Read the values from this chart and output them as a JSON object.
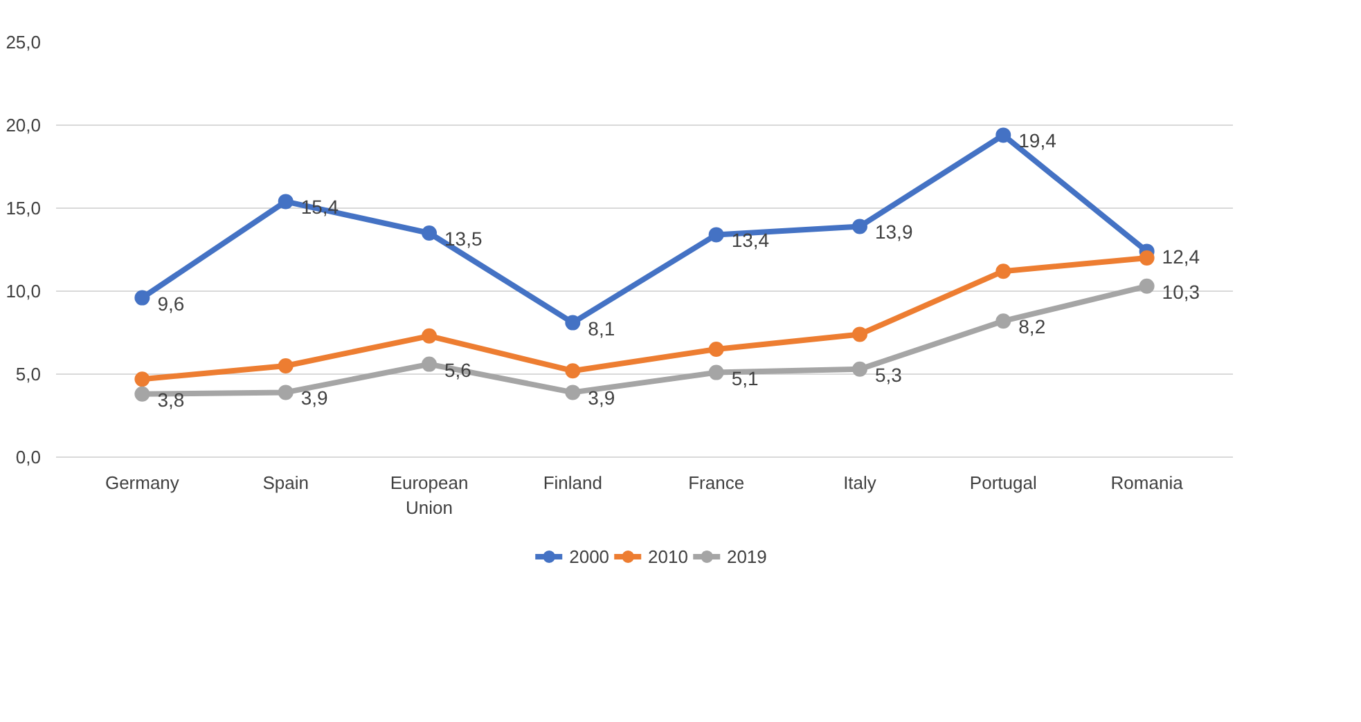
{
  "chart_data": {
    "type": "line",
    "categories": [
      "Germany",
      "Spain",
      "European Union",
      "Finland",
      "France",
      "Italy",
      "Portugal",
      "Romania"
    ],
    "series": [
      {
        "name": "2000",
        "color": "#4472c4",
        "values": [
          9.6,
          15.4,
          13.5,
          8.1,
          13.4,
          13.9,
          19.4,
          12.4
        ],
        "value_labels": [
          "9,6",
          "15,4",
          "13,5",
          "8,1",
          "13,4",
          "13,9",
          "19,4",
          "12,4"
        ]
      },
      {
        "name": "2010",
        "color": "#ed7d31",
        "values": [
          4.7,
          5.5,
          7.3,
          5.2,
          6.5,
          7.4,
          11.2,
          12.0
        ]
      },
      {
        "name": "2019",
        "color": "#a5a5a5",
        "values": [
          3.8,
          3.9,
          5.6,
          3.9,
          5.1,
          5.3,
          8.2,
          10.3
        ],
        "value_labels": [
          "3,8",
          "3,9",
          "5,6",
          "3,9",
          "5,1",
          "5,3",
          "8,2",
          "10,3"
        ]
      }
    ],
    "ylim": [
      0,
      25
    ],
    "yticks": [
      {
        "value": 0,
        "label": "0,0"
      },
      {
        "value": 5,
        "label": "5,0"
      },
      {
        "value": 10,
        "label": "10,0"
      },
      {
        "value": 15,
        "label": "15,0"
      },
      {
        "value": 20,
        "label": "20,0"
      },
      {
        "value": 25,
        "label": "25,0"
      }
    ],
    "grid": "y",
    "legend": "bottom",
    "marker": "circle",
    "line_style": "solid"
  }
}
